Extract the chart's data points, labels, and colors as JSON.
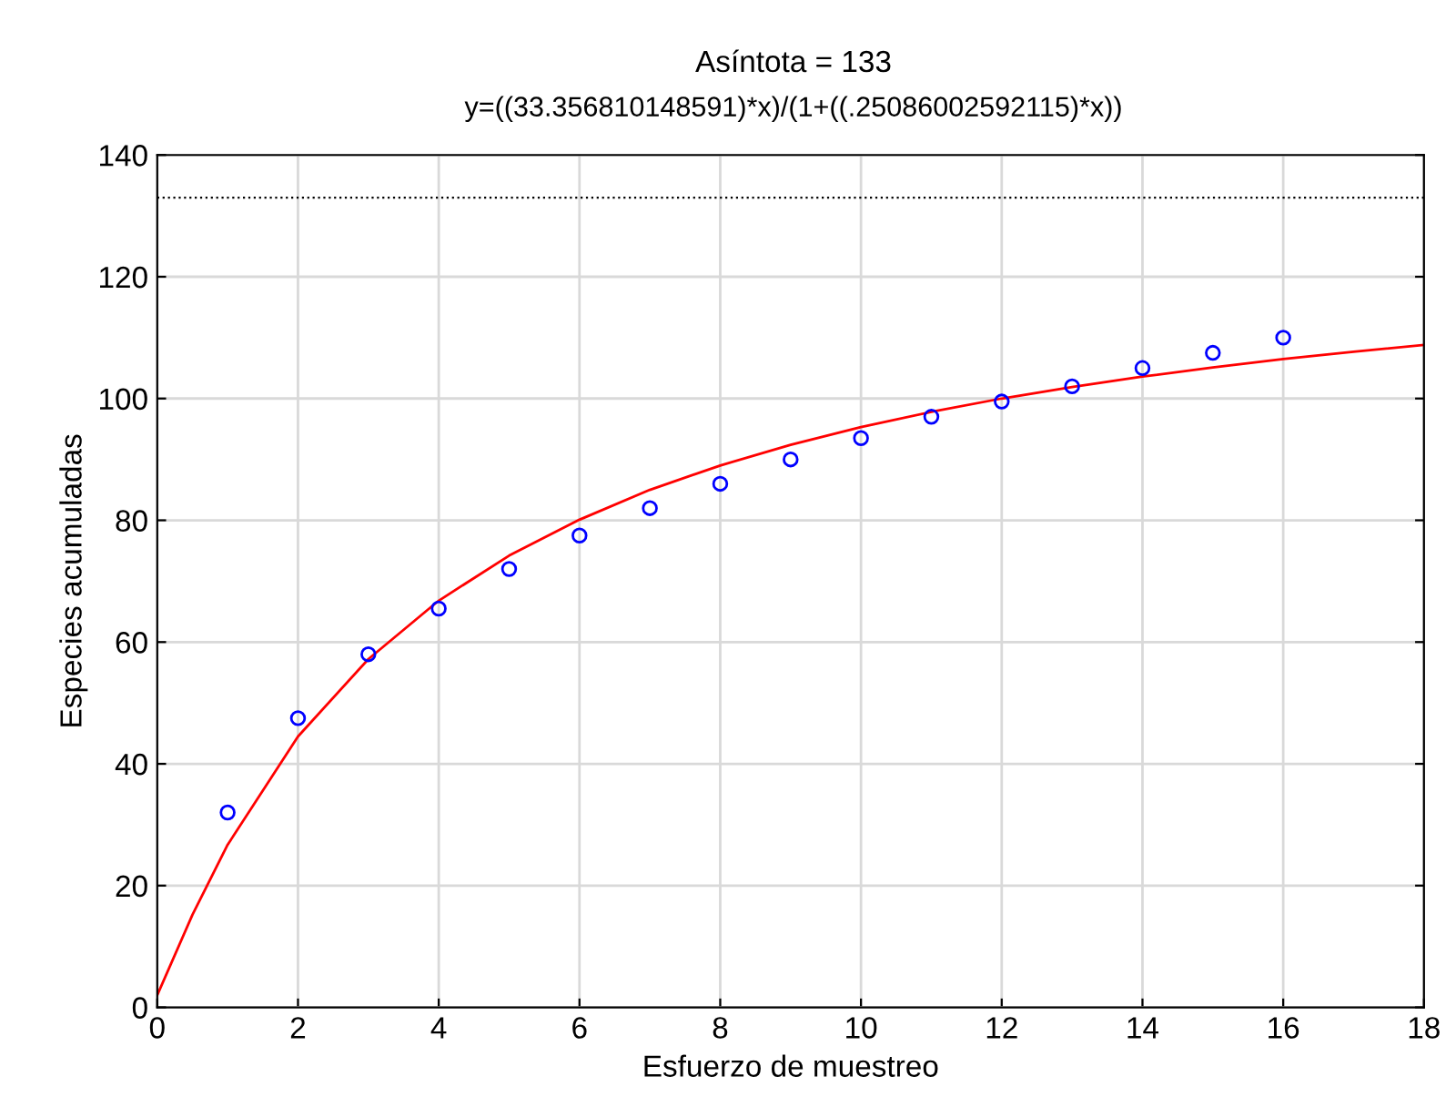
{
  "chart_data": {
    "type": "scatter",
    "title": "Asíntota = 133",
    "subtitle": "y=((33.356810148591)*x)/(1+((.25086002592115)*x))",
    "xlabel": "Esfuerzo de muestreo",
    "ylabel": "Especies acumuladas",
    "series": [
      {
        "color": "#0000ff",
        "marker": "circle",
        "x": [
          1,
          2,
          3,
          4,
          5,
          6,
          7,
          8,
          9,
          10,
          11,
          12,
          13,
          14,
          15,
          16
        ],
        "values": [
          32,
          47.5,
          58,
          65.5,
          72,
          77.5,
          82,
          86,
          90,
          93.5,
          97,
          99.5,
          102,
          105,
          107.5,
          110
        ]
      },
      {
        "type": "line",
        "color": "#ff0000",
        "marker": "none",
        "x": [
          0,
          0.5,
          1,
          2,
          3,
          4,
          5,
          6,
          7,
          8,
          9,
          10,
          11,
          12,
          13,
          14,
          15,
          16,
          17,
          18
        ],
        "values": [
          2,
          15.2,
          26.7,
          44.5,
          57.2,
          66.8,
          74.2,
          80.1,
          85,
          89,
          92.4,
          95.3,
          97.8,
          100,
          101.9,
          103.6,
          105.1,
          106.5,
          107.7,
          108.8
        ]
      }
    ],
    "ref_lines": [
      {
        "axis": "y",
        "value": 133,
        "color": "#000000",
        "line_style": "dotted"
      }
    ],
    "xlim": [
      0,
      18
    ],
    "xticks": [
      0,
      2,
      4,
      6,
      8,
      10,
      12,
      14,
      16,
      18
    ],
    "ylim": [
      0,
      140
    ],
    "yticks": [
      0,
      20,
      40,
      60,
      80,
      100,
      120,
      140
    ],
    "grid": true,
    "legend": false
  }
}
